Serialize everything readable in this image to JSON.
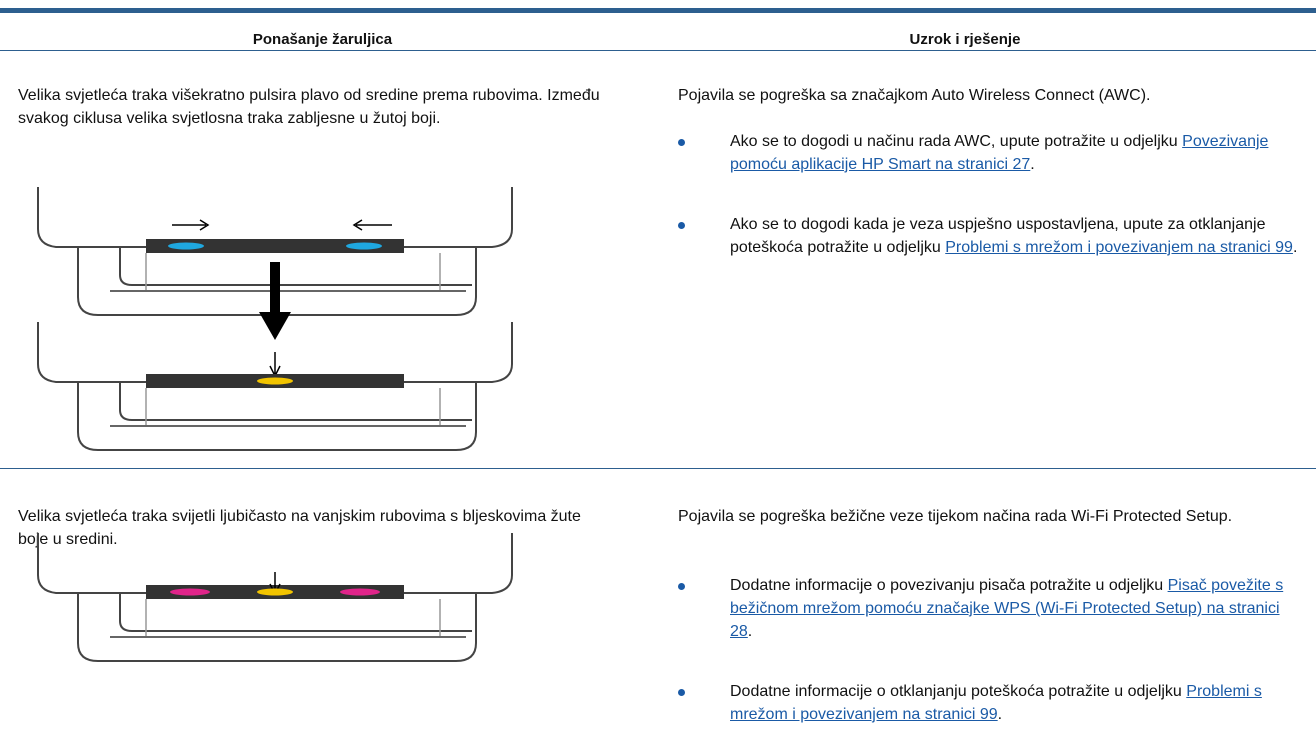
{
  "table": {
    "headers": [
      "Ponašanje žaruljica",
      "Uzrok i rješenje"
    ],
    "rows": [
      {
        "behavior": "Velika svjetleća traka višekratno pulsira plavo od sredine prema rubovima. Između svakog ciklusa velika svjetlosna traka zabljesne u žutoj boji.",
        "cause": "Pojavila se pogreška sa značajkom Auto Wireless Connect (AWC).",
        "bullets": [
          {
            "text": "Ako se to dogodi u načinu rada AWC, upute potražite u odjeljku ",
            "link": "Povezivanje pomoću aplikacije HP Smart na stranici 27",
            "end": "."
          },
          {
            "text": "Ako se to dogodi kada je veza uspješno uspostavljena, upute za otklanjanje poteškoća potražite u odjeljku ",
            "link": "Problemi s mrežom i povezivanjem na stranici 99",
            "end": "."
          }
        ]
      },
      {
        "behavior": "Velika svjetleća traka svijetli ljubičasto na vanjskim rubovima s bljeskovima žute boje u sredini.",
        "cause": "Pojavila se pogreška bežične veze tijekom načina rada Wi-Fi Protected Setup.",
        "bullets": [
          {
            "text": "Dodatne informacije o povezivanju pisača potražite u odjeljku ",
            "link": "Pisač povežite s bežičnom mrežom pomoću značajke WPS (Wi-Fi Protected Setup) na stranici 28",
            "end": "."
          },
          {
            "text": "Dodatne informacije o otklanjanju poteškoća potražite u odjeljku ",
            "link": "Problemi s mrežom i povezivanjem na stranici 99",
            "end": "."
          }
        ]
      }
    ]
  }
}
